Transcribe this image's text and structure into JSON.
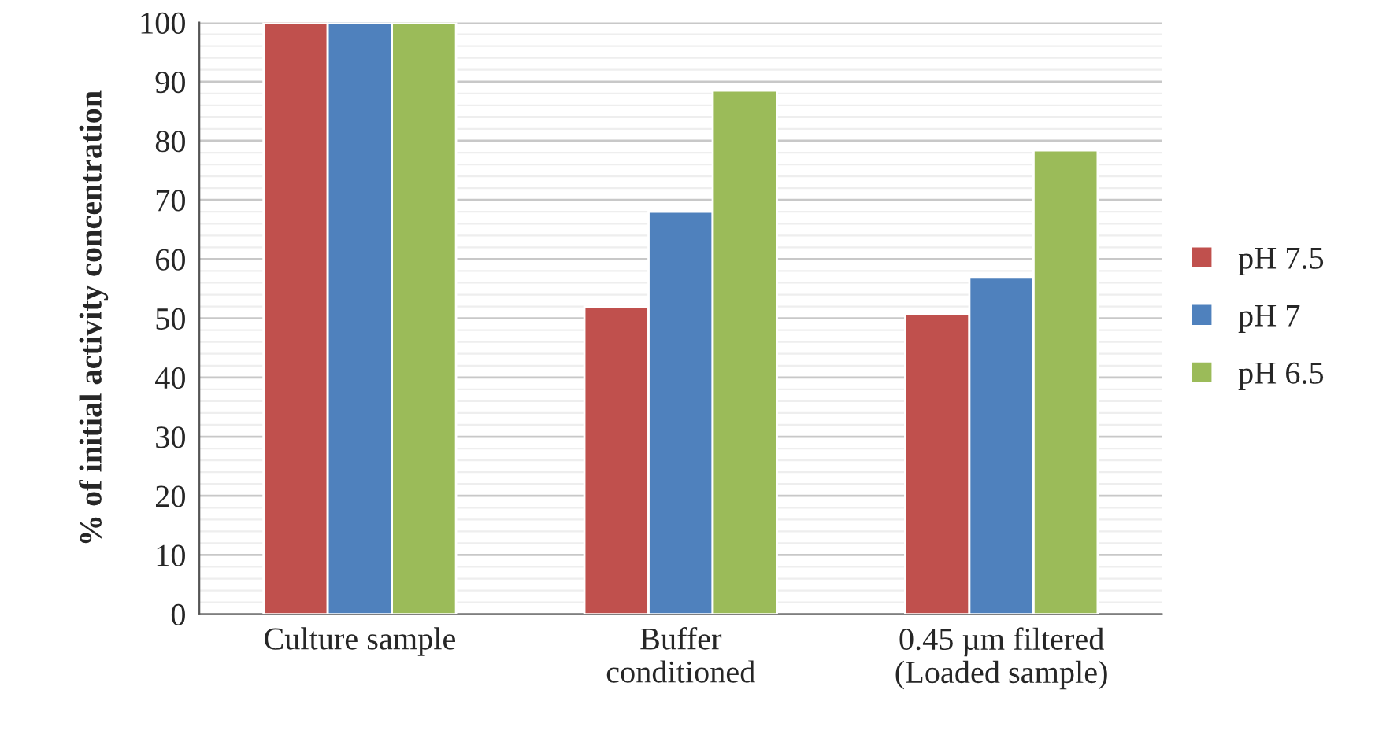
{
  "chart_data": {
    "type": "bar",
    "ylabel": "% of initial activity concentration",
    "categories": [
      "Culture sample",
      "Buffer\nconditioned",
      "0.45 µm filtered\n(Loaded sample)"
    ],
    "series": [
      {
        "name": "pH 7.5",
        "color": "#c0504d",
        "values": [
          100,
          52,
          50.8
        ]
      },
      {
        "name": "pH 7",
        "color": "#4f81bd",
        "values": [
          100,
          68,
          57
        ]
      },
      {
        "name": "pH 6.5",
        "color": "#9bbb59",
        "values": [
          100,
          88.5,
          78.4
        ]
      }
    ],
    "ylim": [
      0,
      100
    ],
    "yticks": [
      0,
      10,
      20,
      30,
      40,
      50,
      60,
      70,
      80,
      90,
      100
    ],
    "grid": "y",
    "legend": "right"
  }
}
